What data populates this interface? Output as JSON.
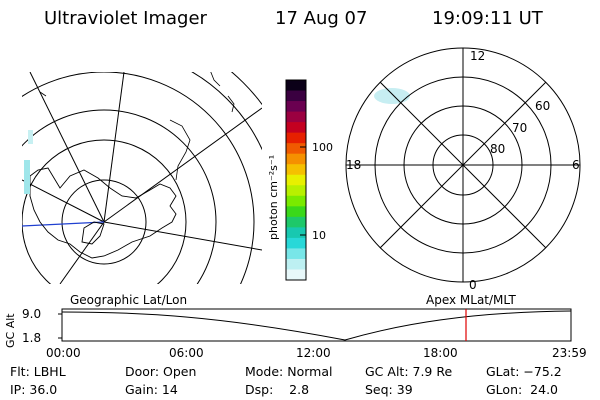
{
  "header": {
    "title": "Ultraviolet Imager",
    "date": "17 Aug 07",
    "time": "19:09:11 UT"
  },
  "colorbar": {
    "unit_label": "photon cm⁻²s⁻¹",
    "ticks": [
      "100",
      "10"
    ],
    "colors": [
      "#0b0018",
      "#3a0040",
      "#6a0050",
      "#9b0040",
      "#c40020",
      "#e62000",
      "#f05a00",
      "#f59000",
      "#f5c000",
      "#e8f000",
      "#b8f000",
      "#7aea00",
      "#3ad81a",
      "#1ec86a",
      "#18c8b0",
      "#28d8d8",
      "#78e6e8",
      "#bdf0f2",
      "#e8f8fa"
    ]
  },
  "left_map": {
    "caption": "Geographic Lat/Lon"
  },
  "right_map": {
    "caption": "Apex MLat/MLT",
    "mlt_labels": {
      "top": "12",
      "left": "18",
      "right": "6",
      "bottom": "0"
    },
    "lat_labels": [
      "60",
      "70",
      "80"
    ]
  },
  "altitude_strip": {
    "axis_label": "GC Alt",
    "y_ticks": [
      "9.0",
      "1.8"
    ],
    "x_ticks": [
      "00:00",
      "06:00",
      "12:00",
      "18:00",
      "23:59"
    ],
    "current_marker_color": "#e00000"
  },
  "info": {
    "flt": "Flt: LBHL",
    "door": "Door: Open",
    "mode": "Mode: Normal",
    "gc_alt": "GC Alt: 7.9 Re",
    "glat": "GLat: −75.2",
    "ip": "IP: 36.0",
    "gain": "Gain: 14",
    "dsp": "Dsp:    2.8",
    "seq": "Seq: 39",
    "glon": "GLon:  24.0"
  }
}
